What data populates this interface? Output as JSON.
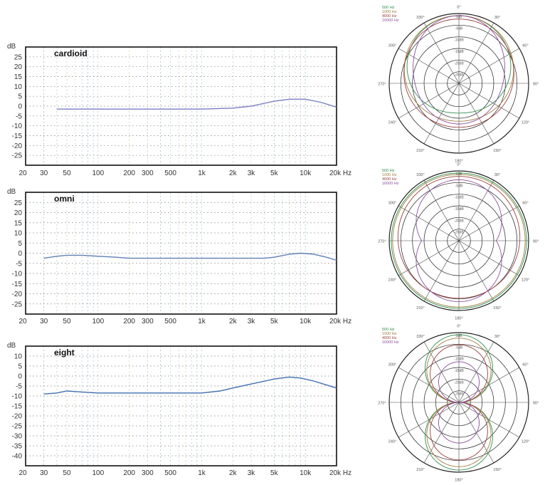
{
  "chart_data": [
    {
      "type": "line",
      "title": "cardioid",
      "ylabel": "dB",
      "xunit": "Hz",
      "xscale": "log",
      "xlim": [
        20,
        20000
      ],
      "ylim": [
        -30,
        30
      ],
      "yticks": [
        25,
        20,
        15,
        10,
        5,
        0,
        -5,
        -10,
        -15,
        -20,
        -25
      ],
      "ytick_labels": [
        "25",
        "20",
        "15",
        "10",
        "5",
        "0",
        "-5",
        "-10",
        "-15",
        "-20",
        "-25"
      ],
      "xticks": [
        20,
        30,
        50,
        100,
        200,
        300,
        500,
        1000,
        2000,
        3000,
        5000,
        10000,
        20000
      ],
      "xtick_labels": [
        "20",
        "30",
        "50",
        "100",
        "200",
        "300",
        "500",
        "1k",
        "2k",
        "3k",
        "5k",
        "10k",
        "20k Hz"
      ],
      "grid": true,
      "series": [
        {
          "color": "#7b7fc4",
          "x": [
            40,
            60,
            100,
            200,
            500,
            1000,
            2000,
            3000,
            5000,
            7000,
            10000,
            14000,
            20000
          ],
          "y": [
            -1.5,
            -1.5,
            -1.5,
            -1.5,
            -1.5,
            -1.5,
            -1.0,
            0.0,
            2.5,
            3.5,
            3.5,
            2.0,
            -0.5
          ]
        }
      ]
    },
    {
      "type": "line",
      "title": "omni",
      "ylabel": "dB",
      "xunit": "Hz",
      "xscale": "log",
      "xlim": [
        20,
        20000
      ],
      "ylim": [
        -30,
        30
      ],
      "yticks": [
        25,
        20,
        15,
        10,
        5,
        0,
        -5,
        -10,
        -15,
        -20,
        -25
      ],
      "ytick_labels": [
        "25",
        "20",
        "15",
        "10",
        "5",
        "0",
        "-5",
        "-10",
        "-15",
        "-20",
        "-25"
      ],
      "xticks": [
        20,
        30,
        50,
        100,
        200,
        300,
        500,
        1000,
        2000,
        3000,
        5000,
        10000,
        20000
      ],
      "xtick_labels": [
        "20",
        "30",
        "50",
        "100",
        "200",
        "300",
        "500",
        "1k",
        "2k",
        "3k",
        "5k",
        "10k",
        "20k Hz"
      ],
      "grid": true,
      "series": [
        {
          "color": "#5f7fb8",
          "x": [
            30,
            40,
            50,
            70,
            100,
            150,
            200,
            500,
            1000,
            2000,
            3000,
            4000,
            5000,
            7000,
            9000,
            12000,
            16000,
            20000
          ],
          "y": [
            -2.5,
            -1.5,
            -1.0,
            -1.0,
            -1.5,
            -2.0,
            -2.5,
            -2.5,
            -2.5,
            -2.5,
            -2.5,
            -2.5,
            -2.0,
            -0.5,
            0.0,
            -0.5,
            -2.0,
            -3.5
          ]
        }
      ]
    },
    {
      "type": "line",
      "title": "eight",
      "ylabel": "dB",
      "xunit": "Hz",
      "xscale": "log",
      "xlim": [
        20,
        20000
      ],
      "ylim": [
        -45,
        15
      ],
      "yticks": [
        10,
        5,
        0,
        -5,
        -10,
        -15,
        -20,
        -25,
        -30,
        -35,
        -40
      ],
      "ytick_labels": [
        "10",
        "5",
        "0",
        "-5",
        "-10",
        "-15",
        "-20",
        "-25",
        "-30",
        "-35",
        "-40"
      ],
      "xticks": [
        20,
        30,
        50,
        100,
        200,
        300,
        500,
        1000,
        2000,
        3000,
        5000,
        10000,
        20000
      ],
      "xtick_labels": [
        "20",
        "30",
        "50",
        "100",
        "200",
        "300",
        "500",
        "1k",
        "2k",
        "3k",
        "5k",
        "10k",
        "20k Hz"
      ],
      "grid": true,
      "series": [
        {
          "color": "#3f6fb0",
          "x": [
            30,
            40,
            50,
            70,
            100,
            200,
            500,
            1000,
            1500,
            2000,
            3000,
            5000,
            7000,
            9000,
            12000,
            16000,
            20000
          ],
          "y": [
            -9,
            -8.5,
            -7.5,
            -8,
            -8.5,
            -8.5,
            -8.5,
            -8.5,
            -7.5,
            -6,
            -4,
            -1.5,
            -0.5,
            -1,
            -2.5,
            -4.5,
            -6
          ]
        }
      ]
    },
    {
      "type": "polar",
      "legend": [
        "500 Hz",
        "1000 Hz",
        "4000 Hz",
        "16000 Hz"
      ],
      "legend_colors": [
        "#2f8f4f",
        "#a08040",
        "#9b3f3f",
        "#8b4f9f"
      ],
      "angle_labels": [
        "0°",
        "30°",
        "60°",
        "90°",
        "120°",
        "150°",
        "180°",
        "210°",
        "240°",
        "270°",
        "300°",
        "330°"
      ],
      "radial_labels": [
        "0dB",
        "-5dB",
        "-10dB",
        "-15dB",
        "-20dB",
        "-25dB"
      ]
    },
    {
      "type": "polar",
      "legend": [
        "500 Hz",
        "1000 Hz",
        "4000 Hz",
        "16000 Hz"
      ],
      "legend_colors": [
        "#2f8f4f",
        "#a08040",
        "#9b3f3f",
        "#8b4f9f"
      ],
      "angle_labels": [
        "0°",
        "30°",
        "60°",
        "90°",
        "120°",
        "150°",
        "180°",
        "210°",
        "240°",
        "270°",
        "300°",
        "330°"
      ],
      "radial_labels": [
        "0dB",
        "-5dB",
        "-10dB",
        "-15dB",
        "-20dB",
        "-25dB"
      ]
    },
    {
      "type": "polar",
      "legend": [
        "500 Hz",
        "1000 Hz",
        "4000 Hz",
        "16000 Hz"
      ],
      "legend_colors": [
        "#2f8f4f",
        "#a08040",
        "#9b3f3f",
        "#8b4f9f"
      ],
      "angle_labels": [
        "0°",
        "30°",
        "60°",
        "90°",
        "120°",
        "150°",
        "180°",
        "210°",
        "240°",
        "270°",
        "300°",
        "330°"
      ],
      "radial_labels": [
        "0dB",
        "-5dB",
        "-10dB",
        "-15dB",
        "-20dB",
        "-25dB"
      ]
    }
  ]
}
